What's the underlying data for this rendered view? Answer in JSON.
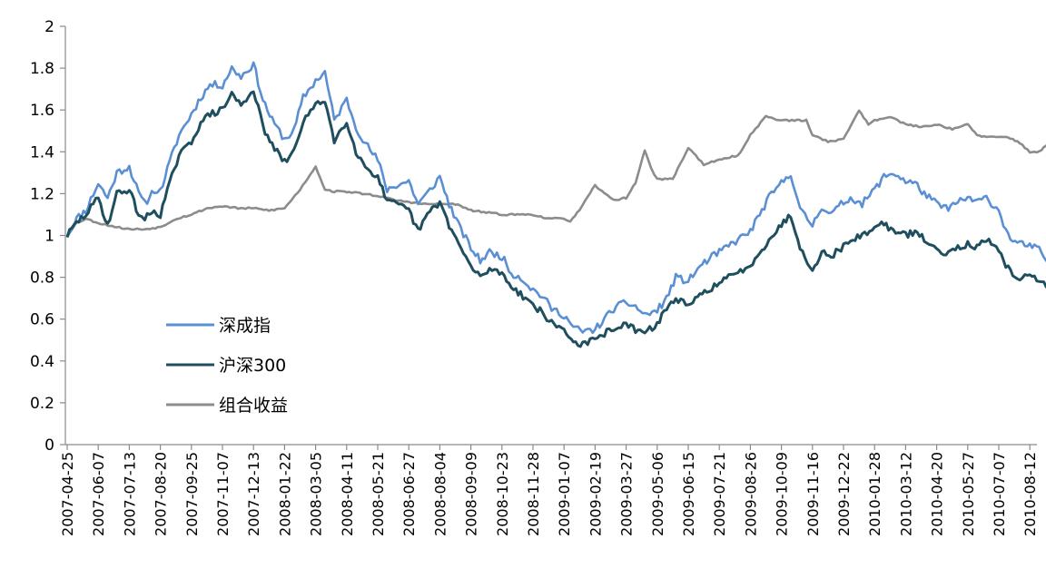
{
  "chart_data": {
    "type": "line",
    "title": "",
    "xlabel": "",
    "ylabel": "",
    "ylim": [
      0,
      2
    ],
    "yticks": [
      0,
      0.2,
      0.4,
      0.6,
      0.8,
      1,
      1.2,
      1.4,
      1.6,
      1.8,
      2
    ],
    "ytick_labels": [
      "0",
      "0.2",
      "0.4",
      "0.6",
      "0.8",
      "1",
      "1.2",
      "1.4",
      "1.6",
      "1.8",
      "2"
    ],
    "grid": false,
    "legend": "center-left",
    "x_tick_labels": [
      "2007-04-25",
      "2007-06-07",
      "2007-07-13",
      "2007-08-20",
      "2007-09-25",
      "2007-11-07",
      "2007-12-13",
      "2008-01-22",
      "2008-03-05",
      "2008-04-11",
      "2008-05-21",
      "2008-06-27",
      "2008-08-04",
      "2008-09-09",
      "2008-10-23",
      "2008-11-28",
      "2009-01-07",
      "2009-02-19",
      "2009-03-27",
      "2009-05-06",
      "2009-06-15",
      "2009-07-21",
      "2009-08-26",
      "2009-10-09",
      "2009-11-16",
      "2009-12-22",
      "2010-01-28",
      "2010-03-12",
      "2010-04-20",
      "2010-05-27",
      "2010-07-07",
      "2010-08-12"
    ],
    "x_index_max": 32.4,
    "series": [
      {
        "name": "深成指",
        "color": "#5b8fd4",
        "x": [
          0,
          0.3,
          0.6,
          1.0,
          1.3,
          1.6,
          2.0,
          2.3,
          2.5,
          2.8,
          3.0,
          3.3,
          3.6,
          4.0,
          4.3,
          4.6,
          5.0,
          5.3,
          5.6,
          6.0,
          6.3,
          6.6,
          7.0,
          7.3,
          7.6,
          8.0,
          8.3,
          8.6,
          9.0,
          9.3,
          9.6,
          10.0,
          10.3,
          10.6,
          11.0,
          11.3,
          11.6,
          12.0,
          12.3,
          12.6,
          13.0,
          13.3,
          13.6,
          14.0,
          14.3,
          14.6,
          15.0,
          15.3,
          15.6,
          16.0,
          16.3,
          16.6,
          17.0,
          17.3,
          17.6,
          18.0,
          18.3,
          18.6,
          19.0,
          19.3,
          19.6,
          20.0,
          20.3,
          20.6,
          21.0,
          21.3,
          21.6,
          22.0,
          22.3,
          22.6,
          23.0,
          23.3,
          23.6,
          24.0,
          24.3,
          24.6,
          25.0,
          25.3,
          25.6,
          26.0,
          26.3,
          26.6,
          27.0,
          27.3,
          27.6,
          28.0,
          28.3,
          28.6,
          29.0,
          29.3,
          29.6,
          30.0,
          30.3,
          30.6,
          31.0,
          31.3,
          31.6,
          32.0,
          32.4
        ],
        "values": [
          1.0,
          1.08,
          1.12,
          1.25,
          1.18,
          1.3,
          1.33,
          1.2,
          1.15,
          1.22,
          1.21,
          1.35,
          1.48,
          1.58,
          1.66,
          1.72,
          1.72,
          1.8,
          1.76,
          1.82,
          1.65,
          1.55,
          1.46,
          1.5,
          1.66,
          1.74,
          1.78,
          1.55,
          1.65,
          1.52,
          1.44,
          1.36,
          1.22,
          1.24,
          1.26,
          1.15,
          1.2,
          1.28,
          1.15,
          1.05,
          0.94,
          0.88,
          0.92,
          0.9,
          0.82,
          0.8,
          0.74,
          0.71,
          0.65,
          0.62,
          0.56,
          0.54,
          0.55,
          0.6,
          0.65,
          0.68,
          0.66,
          0.62,
          0.64,
          0.7,
          0.8,
          0.78,
          0.84,
          0.88,
          0.92,
          0.95,
          0.98,
          1.02,
          1.1,
          1.18,
          1.25,
          1.3,
          1.12,
          1.05,
          1.14,
          1.1,
          1.16,
          1.18,
          1.15,
          1.22,
          1.28,
          1.3,
          1.26,
          1.25,
          1.2,
          1.15,
          1.13,
          1.15,
          1.18,
          1.16,
          1.18,
          1.12,
          1.0,
          0.96,
          0.95,
          0.93,
          0.87,
          0.98,
          1.03
        ]
      },
      {
        "name": "沪深300",
        "color": "#1f4e5f",
        "x": [
          0,
          0.3,
          0.6,
          1.0,
          1.3,
          1.6,
          2.0,
          2.3,
          2.5,
          2.8,
          3.0,
          3.3,
          3.6,
          4.0,
          4.3,
          4.6,
          5.0,
          5.3,
          5.6,
          6.0,
          6.3,
          6.6,
          7.0,
          7.3,
          7.6,
          8.0,
          8.3,
          8.6,
          9.0,
          9.3,
          9.6,
          10.0,
          10.3,
          10.6,
          11.0,
          11.3,
          11.6,
          12.0,
          12.3,
          12.6,
          13.0,
          13.3,
          13.6,
          14.0,
          14.3,
          14.6,
          15.0,
          15.3,
          15.6,
          16.0,
          16.3,
          16.6,
          17.0,
          17.3,
          17.6,
          18.0,
          18.3,
          18.6,
          19.0,
          19.3,
          19.6,
          20.0,
          20.3,
          20.6,
          21.0,
          21.3,
          21.6,
          22.0,
          22.3,
          22.6,
          23.0,
          23.3,
          23.6,
          24.0,
          24.3,
          24.6,
          25.0,
          25.3,
          25.6,
          26.0,
          26.3,
          26.6,
          27.0,
          27.3,
          27.6,
          28.0,
          28.3,
          28.6,
          29.0,
          29.3,
          29.6,
          30.0,
          30.3,
          30.6,
          31.0,
          31.3,
          31.6,
          32.0,
          32.4
        ],
        "values": [
          1.0,
          1.06,
          1.1,
          1.18,
          1.05,
          1.2,
          1.22,
          1.1,
          1.08,
          1.12,
          1.1,
          1.25,
          1.38,
          1.45,
          1.54,
          1.58,
          1.6,
          1.68,
          1.62,
          1.7,
          1.52,
          1.43,
          1.35,
          1.4,
          1.55,
          1.62,
          1.65,
          1.45,
          1.55,
          1.4,
          1.33,
          1.28,
          1.16,
          1.15,
          1.12,
          1.02,
          1.1,
          1.16,
          1.05,
          0.96,
          0.85,
          0.8,
          0.84,
          0.82,
          0.76,
          0.72,
          0.67,
          0.63,
          0.58,
          0.55,
          0.49,
          0.48,
          0.5,
          0.53,
          0.56,
          0.57,
          0.55,
          0.53,
          0.58,
          0.65,
          0.7,
          0.66,
          0.7,
          0.74,
          0.77,
          0.8,
          0.82,
          0.86,
          0.92,
          0.98,
          1.05,
          1.1,
          0.94,
          0.84,
          0.92,
          0.9,
          0.95,
          0.98,
          1.0,
          1.04,
          1.06,
          1.02,
          1.0,
          1.02,
          0.98,
          0.93,
          0.92,
          0.94,
          0.96,
          0.94,
          0.98,
          0.92,
          0.84,
          0.8,
          0.8,
          0.79,
          0.74,
          0.82,
          0.83
        ]
      },
      {
        "name": "组合收益",
        "color": "#8c8c8c",
        "x": [
          0,
          0.3,
          0.6,
          1.0,
          1.3,
          1.6,
          2.0,
          2.5,
          3.0,
          3.5,
          4.0,
          4.5,
          5.0,
          5.5,
          6.0,
          6.5,
          7.0,
          7.5,
          8.0,
          8.3,
          8.6,
          9.0,
          9.5,
          10.0,
          10.5,
          11.0,
          11.5,
          12.0,
          12.5,
          13.0,
          13.5,
          14.0,
          14.5,
          15.0,
          15.5,
          15.6,
          15.8,
          16.0,
          16.2,
          16.5,
          17.0,
          17.3,
          17.5,
          17.7,
          18.0,
          18.3,
          18.6,
          18.8,
          19.0,
          19.5,
          20.0,
          20.5,
          21.0,
          21.5,
          21.6,
          22.0,
          22.5,
          23.0,
          23.5,
          23.8,
          24.0,
          24.5,
          25.0,
          25.5,
          25.8,
          26.0,
          26.5,
          27.0,
          27.5,
          28.0,
          28.5,
          29.0,
          29.3,
          29.6,
          30.0,
          30.3,
          30.6,
          31.0,
          31.3,
          31.6,
          32.0,
          32.4
        ],
        "values": [
          1.0,
          1.06,
          1.08,
          1.06,
          1.05,
          1.04,
          1.03,
          1.03,
          1.04,
          1.08,
          1.1,
          1.13,
          1.14,
          1.13,
          1.13,
          1.12,
          1.13,
          1.22,
          1.33,
          1.22,
          1.21,
          1.21,
          1.2,
          1.19,
          1.17,
          1.16,
          1.15,
          1.15,
          1.15,
          1.12,
          1.11,
          1.1,
          1.1,
          1.1,
          1.08,
          1.08,
          1.08,
          1.08,
          1.07,
          1.12,
          1.24,
          1.2,
          1.18,
          1.17,
          1.18,
          1.25,
          1.41,
          1.32,
          1.27,
          1.27,
          1.42,
          1.34,
          1.36,
          1.38,
          1.38,
          1.48,
          1.57,
          1.55,
          1.55,
          1.55,
          1.48,
          1.45,
          1.46,
          1.6,
          1.53,
          1.55,
          1.57,
          1.53,
          1.52,
          1.53,
          1.51,
          1.53,
          1.48,
          1.47,
          1.47,
          1.47,
          1.45,
          1.4,
          1.4,
          1.44,
          1.47,
          1.51
        ]
      }
    ]
  }
}
